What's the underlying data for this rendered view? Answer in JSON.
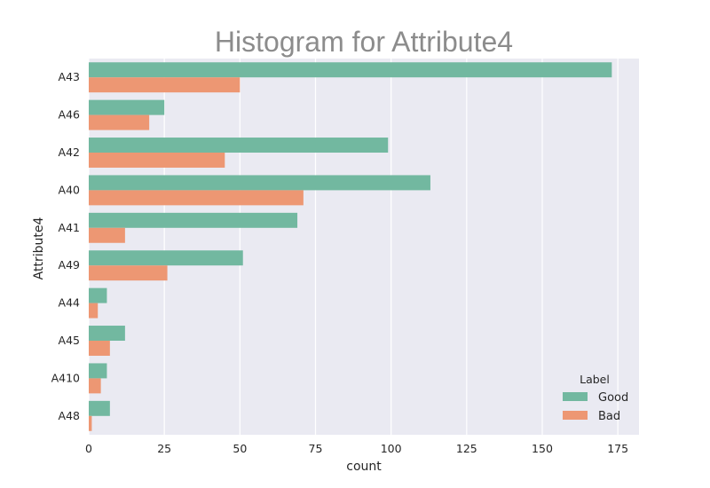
{
  "chart_data": {
    "type": "bar",
    "orientation": "horizontal",
    "title": "Histogram for Attribute4",
    "xlabel": "count",
    "ylabel": "Attribute4",
    "categories": [
      "A43",
      "A46",
      "A42",
      "A40",
      "A41",
      "A49",
      "A44",
      "A45",
      "A410",
      "A48"
    ],
    "series": [
      {
        "name": "Good",
        "color": "#72b8a0",
        "values": [
          173,
          25,
          99,
          113,
          69,
          51,
          6,
          12,
          6,
          7
        ]
      },
      {
        "name": "Bad",
        "color": "#ed9773",
        "values": [
          50,
          20,
          45,
          71,
          12,
          26,
          3,
          7,
          4,
          1
        ]
      }
    ],
    "xlim": [
      0,
      182
    ],
    "xticks": [
      "0",
      "25",
      "50",
      "75",
      "100",
      "125",
      "150",
      "175"
    ],
    "grid": true,
    "background": "#eaeaf2",
    "legend": {
      "title": "Label",
      "placement": "lower-right"
    }
  }
}
